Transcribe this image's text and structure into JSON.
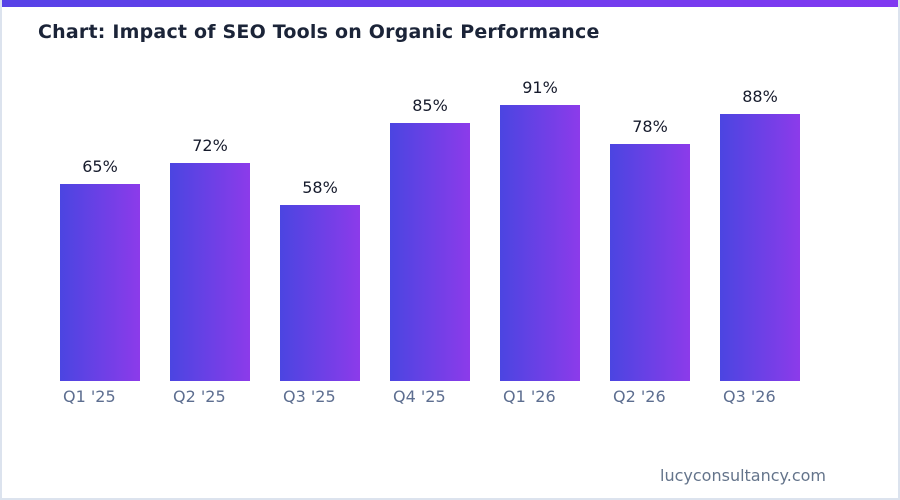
{
  "page": {
    "footer": "lucyconsultancy.com"
  },
  "chart_data": {
    "type": "bar",
    "title": "Chart: Impact of SEO Tools on Organic Performance",
    "categories": [
      "Q1 '25",
      "Q2 '25",
      "Q3 '25",
      "Q4 '25",
      "Q1 '26",
      "Q2 '26",
      "Q3 '26"
    ],
    "values": [
      65,
      72,
      58,
      85,
      91,
      78,
      88
    ],
    "value_labels": [
      "65%",
      "72%",
      "58%",
      "85%",
      "91%",
      "78%",
      "88%"
    ],
    "unit": "%",
    "xlabel": "",
    "ylabel": "",
    "ylim": [
      0,
      100
    ],
    "grid": false,
    "legend": false,
    "value_labels_position": "above-bars",
    "category_label_alignment": "left-of-bar",
    "colors": {
      "background": "#ffffff",
      "border": "#dce3ee",
      "accent_strip_start": "#5742e7",
      "accent_strip_end": "#8139f1",
      "bar_gradient_start": "#4b45e1",
      "bar_gradient_end": "#8c3bea",
      "title": "#1b2438",
      "value_label": "#161b2c",
      "category_label": "#5d6e90",
      "footer": "#64748b"
    }
  }
}
